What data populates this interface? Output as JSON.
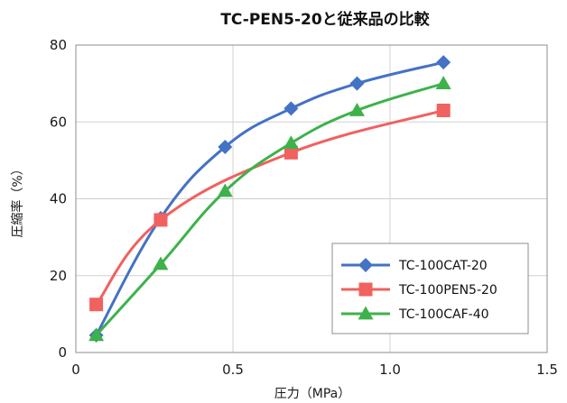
{
  "chart_data": {
    "type": "line",
    "title": "TC-PEN5-20と従来品の比較",
    "xlabel": "圧力（MPa）",
    "ylabel": "圧縮率（%）",
    "xlim": [
      0,
      1.5
    ],
    "ylim": [
      0,
      80
    ],
    "xticks": [
      "0",
      "0.5",
      "1.0",
      "1.5"
    ],
    "yticks": [
      "0",
      "20",
      "40",
      "60",
      "80"
    ],
    "grid": true,
    "legend_position": "bottom-right",
    "series": [
      {
        "name": "TC-100CAT-20",
        "color": "#4472c4",
        "marker": "diamond",
        "x": [
          0.065,
          0.27,
          0.475,
          0.685,
          0.895,
          1.17
        ],
        "y": [
          4.5,
          35,
          53.5,
          63.5,
          70,
          75.5
        ]
      },
      {
        "name": "TC-100PEN5-20",
        "color": "#f0615f",
        "marker": "square",
        "x": [
          0.065,
          0.27,
          0.685,
          1.17
        ],
        "y": [
          12.5,
          34.5,
          52,
          63
        ]
      },
      {
        "name": "TC-100CAF-40",
        "color": "#3db24a",
        "marker": "triangle",
        "x": [
          0.065,
          0.27,
          0.475,
          0.685,
          0.895,
          1.17
        ],
        "y": [
          4.5,
          23,
          42,
          54.5,
          63,
          70
        ]
      }
    ]
  }
}
